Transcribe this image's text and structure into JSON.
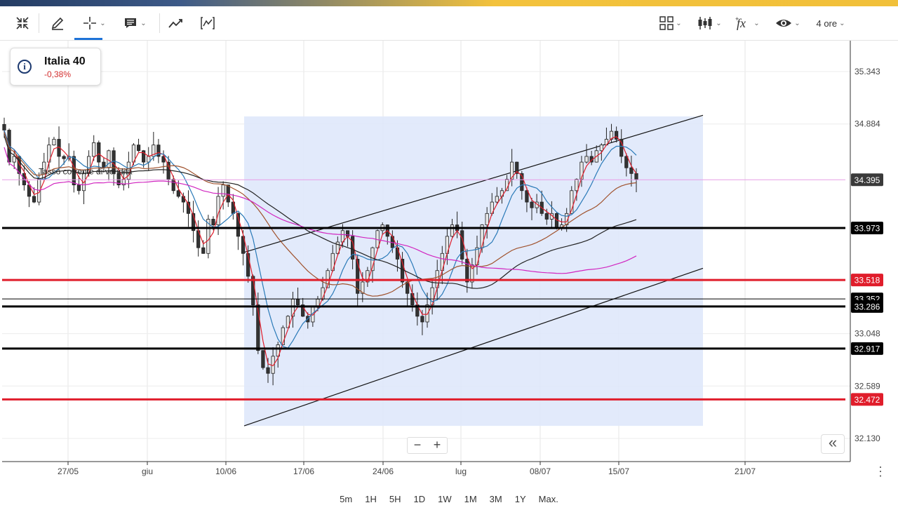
{
  "toolbar": {
    "interval_label": "4 ore",
    "icons": [
      "collapse-arrows-icon",
      "pencil-icon",
      "crosshair-icon",
      "comment-icon",
      "trend-icon",
      "indicator-window-icon",
      "layout-grid-icon",
      "candlestick-icon",
      "function-icon",
      "eye-icon"
    ]
  },
  "instrument": {
    "name": "Italia 40",
    "change": "-0,38%"
  },
  "periods": [
    "5m",
    "1H",
    "5H",
    "1D",
    "1W",
    "1M",
    "3M",
    "1Y",
    "Max."
  ],
  "annotation_text": "Tasso corrente di vendita",
  "colors": {
    "candle_up": "#e8e8e8",
    "candle_down": "#333333",
    "price_line": "#e79de6",
    "red_level": "#e01d2b",
    "channel_fill": "#dfe8fb"
  },
  "chart_data": {
    "type": "candlestick",
    "ylim": [
      32.0,
      35.45
    ],
    "y_ticks": [
      "35.343",
      "34.884",
      "34.395",
      "33.973",
      "33.518",
      "33.352",
      "33.286",
      "33.048",
      "32.917",
      "32.589",
      "32.472",
      "32.130"
    ],
    "x_ticks": [
      "27/05",
      "giu",
      "10/06",
      "17/06",
      "24/06",
      "lug",
      "08/07",
      "15/07",
      "21/07"
    ],
    "current_price": "34.395",
    "horizontal_levels": [
      {
        "value": 33.973,
        "label": "33.973",
        "color": "black"
      },
      {
        "value": 33.518,
        "label": "33.518",
        "color": "red"
      },
      {
        "value": 33.352,
        "label": "33.352",
        "color": "black-thin"
      },
      {
        "value": 33.286,
        "label": "33.286",
        "color": "black"
      },
      {
        "value": 32.917,
        "label": "32.917",
        "color": "black"
      },
      {
        "value": 32.472,
        "label": "32.472",
        "color": "red"
      }
    ],
    "channel": {
      "upper": [
        [
          "10/06",
          33.76
        ],
        [
          "19/07",
          34.96
        ]
      ],
      "lower": [
        [
          "10/06",
          32.24
        ],
        [
          "19/07",
          33.62
        ]
      ]
    },
    "close_path": [
      34.83,
      34.55,
      34.6,
      34.45,
      34.35,
      34.25,
      34.2,
      34.4,
      34.55,
      34.7,
      34.75,
      34.6,
      34.58,
      34.6,
      34.35,
      34.3,
      34.45,
      34.6,
      34.72,
      34.55,
      34.5,
      34.65,
      34.45,
      34.35,
      34.4,
      34.55,
      34.7,
      34.65,
      34.55,
      34.6,
      34.7,
      34.6,
      34.55,
      34.4,
      34.3,
      34.25,
      34.2,
      34.1,
      33.95,
      33.8,
      33.75,
      34.05,
      34.0,
      34.25,
      34.35,
      34.2,
      34.1,
      33.9,
      33.75,
      33.55,
      33.3,
      32.9,
      32.75,
      32.7,
      32.85,
      32.95,
      33.1,
      33.2,
      33.35,
      33.3,
      33.2,
      33.15,
      33.28,
      33.35,
      33.45,
      33.6,
      33.75,
      33.85,
      33.95,
      33.9,
      33.7,
      33.4,
      33.5,
      33.6,
      33.8,
      33.95,
      34.0,
      33.9,
      33.8,
      33.7,
      33.5,
      33.4,
      33.3,
      33.2,
      33.15,
      33.3,
      33.45,
      33.6,
      33.75,
      33.9,
      34.0,
      33.95,
      33.7,
      33.5,
      33.65,
      33.8,
      34.0,
      34.1,
      34.2,
      34.25,
      34.3,
      34.4,
      34.55,
      34.45,
      34.3,
      34.2,
      34.15,
      34.2,
      34.1,
      34.05,
      34.1,
      33.98,
      34.0,
      34.1,
      34.3,
      34.4,
      34.55,
      34.6,
      34.55,
      34.65,
      34.7,
      34.75,
      34.82,
      34.75,
      34.6,
      34.5,
      34.45,
      34.4
    ],
    "moving_averages": [
      {
        "color": "#e01d2b",
        "period": "fast"
      },
      {
        "color": "#2a7ab8",
        "period": "short"
      },
      {
        "color": "#a0522d",
        "period": "medium"
      },
      {
        "color": "#222222",
        "period": "long"
      },
      {
        "color": "#d126c0",
        "period": "very long"
      }
    ]
  }
}
